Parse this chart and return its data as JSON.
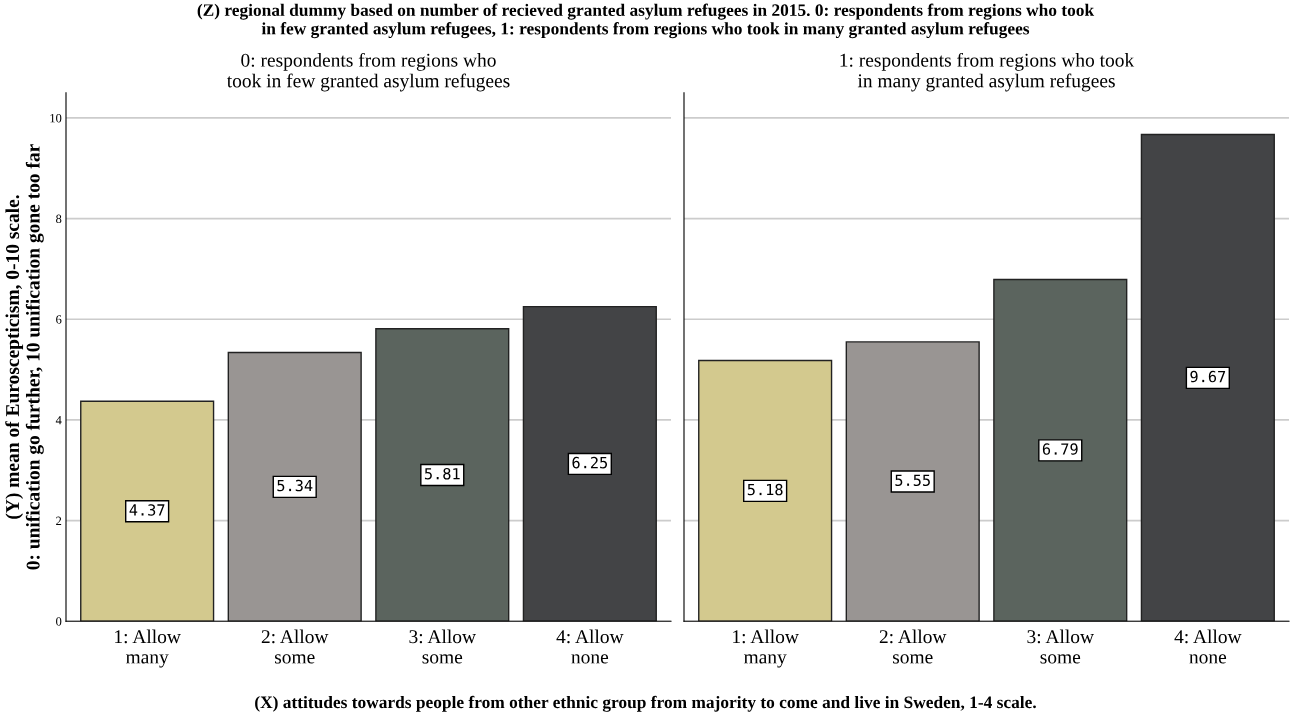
{
  "chart_data": [
    {
      "type": "bar",
      "title": "(Z) regional dummy based on number of recieved granted asylum refugees in 2015. 0: respondents from regions who took\nin few granted asylum refugees, 1: respondents from regions who took in many granted asylum refugees",
      "subtitle": "0: respondents from regions who\ntook in few granted asylum refugees",
      "xlabel": "(X) attitudes towards people from other ethnic group from majority to come and live in Sweden, 1-4 scale.",
      "ylabel": "(Y) mean of Euroscepticism, 0-10 scale.\n0: unification go further, 10 unification gone too far",
      "categories": [
        "1: Allow\nmany",
        "2: Allow\nsome",
        "3: Allow\nsome",
        "4: Allow\nnone"
      ],
      "values": [
        4.37,
        5.34,
        5.81,
        6.25
      ],
      "colors": [
        "#d3c98e",
        "#999593",
        "#5b645e",
        "#434446"
      ],
      "ylim": [
        0,
        10.5
      ],
      "yticks": [
        0,
        2,
        4,
        6,
        8,
        10
      ],
      "grid": "y",
      "data_labels": true
    },
    {
      "type": "bar",
      "subtitle": "1: respondents from regions who took\nin many granted asylum refugees",
      "categories": [
        "1: Allow\nmany",
        "2: Allow\nsome",
        "3: Allow\nsome",
        "4: Allow\nnone"
      ],
      "values": [
        5.18,
        5.55,
        6.79,
        9.67
      ],
      "colors": [
        "#d3c98e",
        "#999593",
        "#5b645e",
        "#434446"
      ],
      "ylim": [
        0,
        10.5
      ],
      "yticks": [
        0,
        2,
        4,
        6,
        8,
        10
      ],
      "grid": "y",
      "data_labels": true,
      "tick_labels": "x"
    }
  ]
}
